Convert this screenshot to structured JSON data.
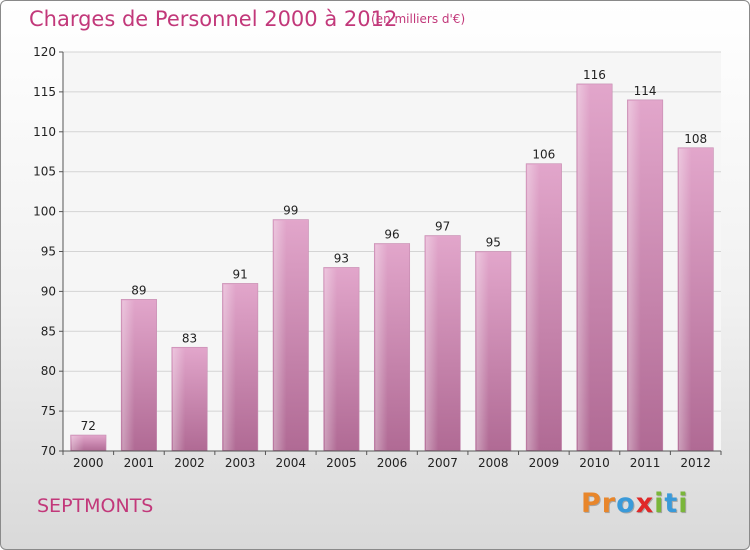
{
  "header": {
    "title": "Charges de Personnel 2000 à 2012",
    "subtitle": "(en milliers d'€)"
  },
  "footer": {
    "commune": "SEPTMONTS",
    "logo": "Proxiti",
    "logo_colors": [
      "#e8862b",
      "#e8862b",
      "#3a9ad9",
      "#e02828",
      "#7ab63a",
      "#3a9ad9",
      "#7ab63a"
    ]
  },
  "colors": {
    "bar_top": "#e2a6cb",
    "bar_bottom": "#b06a94",
    "accent": "#c2387a"
  },
  "chart_data": {
    "type": "bar",
    "categories": [
      "2000",
      "2001",
      "2002",
      "2003",
      "2004",
      "2005",
      "2006",
      "2007",
      "2008",
      "2009",
      "2010",
      "2011",
      "2012"
    ],
    "values": [
      72,
      89,
      83,
      91,
      99,
      93,
      96,
      97,
      95,
      106,
      116,
      114,
      108
    ],
    "ylim": [
      70,
      120
    ],
    "yticks": [
      70,
      75,
      80,
      85,
      90,
      95,
      100,
      105,
      110,
      115,
      120
    ],
    "grid": true
  }
}
